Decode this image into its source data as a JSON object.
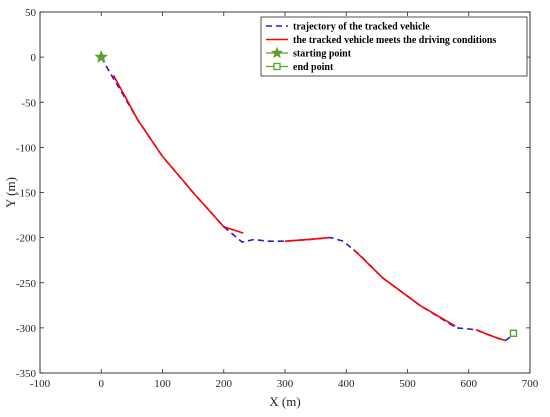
{
  "chart_data": {
    "type": "line",
    "xlabel": "X (m)",
    "ylabel": "Y (m)",
    "xlim": [
      -100,
      700
    ],
    "ylim": [
      -350,
      50
    ],
    "xticks": [
      -100,
      0,
      100,
      200,
      300,
      400,
      500,
      600,
      700
    ],
    "yticks": [
      50,
      0,
      -50,
      -100,
      -150,
      -200,
      -250,
      -300,
      -350
    ],
    "grid": false,
    "legend_position": "top-right",
    "series": [
      {
        "name": "trajectory of the tracked vehicle",
        "style": "dashed",
        "color": "#1f1fd0",
        "x": [
          0,
          15,
          30,
          60,
          100,
          150,
          200,
          230,
          250,
          270,
          300,
          340,
          375,
          395,
          420,
          460,
          520,
          580,
          612,
          630,
          650,
          660,
          668,
          673
        ],
        "y": [
          0,
          -18,
          -35,
          -70,
          -110,
          -150,
          -188,
          -205,
          -202,
          -204,
          -204,
          -202,
          -200,
          -204,
          -218,
          -245,
          -275,
          -300,
          -302,
          -307,
          -312,
          -314,
          -310,
          -306
        ]
      },
      {
        "name": "the tracked vehicle meets the driving conditions",
        "style": "solid",
        "color": "#ff0000",
        "segments": [
          {
            "x": [
              20,
              60,
              100,
              150,
              200,
              232
            ],
            "y": [
              -20,
              -70,
              -110,
              -150,
              -188,
              -195
            ]
          },
          {
            "x": [
              300,
              340,
              373
            ],
            "y": [
              -204,
              -202,
              -200
            ]
          },
          {
            "x": [
              412,
              460,
              520,
              578
            ],
            "y": [
              -213,
              -245,
              -275,
              -298
            ]
          },
          {
            "x": [
              612,
              630,
              650,
              660
            ],
            "y": [
              -302,
              -307,
              -312,
              -314
            ]
          }
        ]
      },
      {
        "name": "starting point",
        "marker": "star",
        "color": "#5aa02c",
        "x": [
          0
        ],
        "y": [
          0
        ]
      },
      {
        "name": "end point",
        "marker": "square",
        "color": "#5aa02c",
        "x": [
          673
        ],
        "y": [
          -306
        ]
      }
    ]
  }
}
